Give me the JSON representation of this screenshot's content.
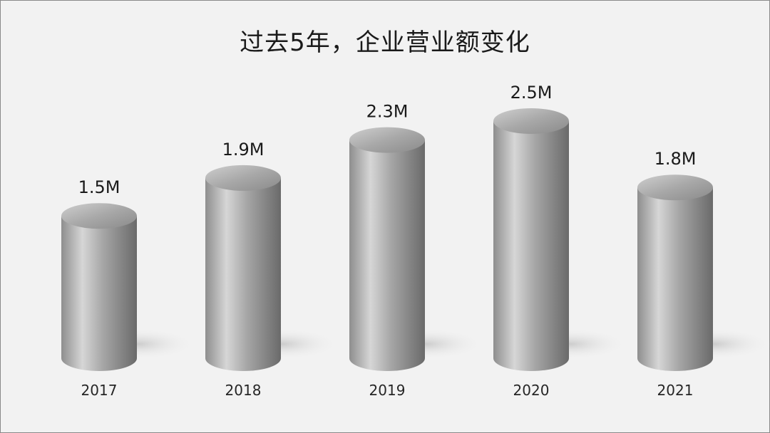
{
  "chart_data": {
    "type": "bar",
    "title": "过去5年，企业营业额变化",
    "categories": [
      "2017",
      "2018",
      "2019",
      "2020",
      "2021"
    ],
    "values": [
      1.5,
      1.9,
      2.3,
      2.5,
      1.8
    ],
    "value_labels": [
      "1.5M",
      "1.9M",
      "2.3M",
      "2.5M",
      "1.8M"
    ],
    "xlabel": "",
    "ylabel": "",
    "ylim": [
      0,
      2.5
    ],
    "grid": false,
    "bar_style": "3d-cylinder",
    "colors": {
      "background": "#f2f2f2",
      "bar_light": "#d9d9d9",
      "bar_dark": "#6e6e6e",
      "text": "#1a1a1a"
    }
  }
}
